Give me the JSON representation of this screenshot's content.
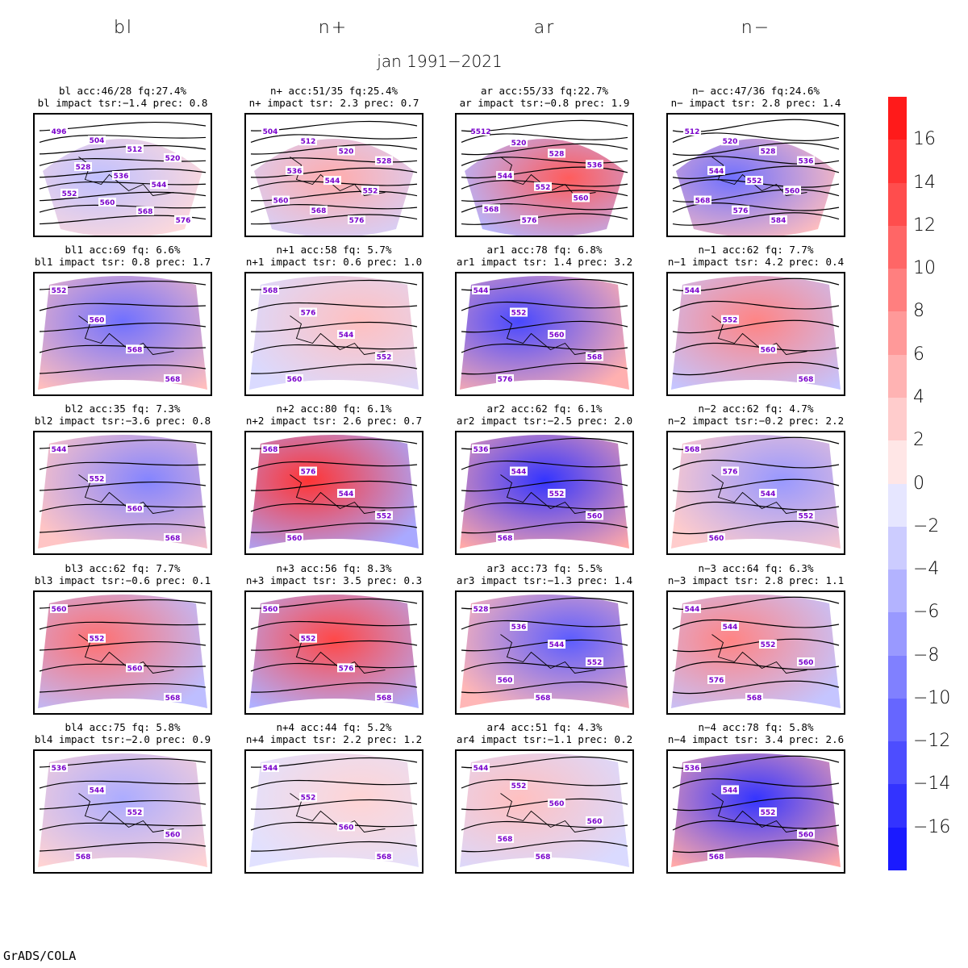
{
  "columns": [
    "bl",
    "n+",
    "ar",
    "n−"
  ],
  "title": "jan 1991−2021",
  "credit": "GrADS/COLA",
  "panels": [
    {
      "l1": "bl acc:46/28 fq:27.4%",
      "l2": "bl impact tsr:−1.4 prec: 0.8",
      "h": -0.2,
      "lbls": [
        "496",
        "504",
        "512",
        "520",
        "528",
        "536",
        "544",
        "552",
        "560",
        "568",
        "576"
      ],
      "icon": "hemispheric-map"
    },
    {
      "l1": "n+ acc:51/35 fq:25.4%",
      "l2": "n+ impact tsr: 2.3 prec: 0.7",
      "h": 0.3,
      "lbls": [
        "504",
        "512",
        "520",
        "528",
        "536",
        "544",
        "552",
        "560",
        "568",
        "576"
      ],
      "icon": "hemispheric-map"
    },
    {
      "l1": "ar acc:55/33 fq:22.7%",
      "l2": "ar impact tsr:−0.8 prec: 1.9",
      "h": 0.7,
      "lbls": [
        "5512",
        "520",
        "528",
        "536",
        "544",
        "552",
        "560",
        "568",
        "576"
      ],
      "icon": "hemispheric-map"
    },
    {
      "l1": "n− acc:47/36 fq:24.6%",
      "l2": "n− impact tsr: 2.8 prec: 1.4",
      "h": -0.6,
      "lbls": [
        "512",
        "520",
        "528",
        "536",
        "544",
        "552",
        "560",
        "568",
        "576",
        "584"
      ],
      "icon": "hemispheric-map"
    },
    {
      "l1": "bl1 acc:69 fq: 6.6%",
      "l2": "bl1 impact tsr: 0.8 prec: 1.7",
      "h": -0.6,
      "lbls": [
        "552",
        "560",
        "568",
        "568"
      ],
      "icon": "europe-map"
    },
    {
      "l1": "n+1 acc:58 fq: 5.7%",
      "l2": "n+1 impact tsr: 0.6 prec: 1.0",
      "h": 0.2,
      "lbls": [
        "568",
        "576",
        "544",
        "552",
        "560"
      ],
      "icon": "europe-map"
    },
    {
      "l1": "ar1 acc:78 fq: 6.8%",
      "l2": "ar1 impact tsr: 1.4 prec: 3.2",
      "h": -0.8,
      "lbls": [
        "544",
        "552",
        "560",
        "568",
        "576"
      ],
      "icon": "europe-map"
    },
    {
      "l1": "n−1 acc:62 fq: 7.7%",
      "l2": "n−1 impact tsr: 4.2 prec: 0.4",
      "h": 0.5,
      "lbls": [
        "544",
        "552",
        "560",
        "568"
      ],
      "icon": "europe-map"
    },
    {
      "l1": "bl2 acc:35 fq: 7.3%",
      "l2": "bl2 impact tsr:−3.6 prec: 0.8",
      "h": -0.5,
      "lbls": [
        "544",
        "552",
        "560",
        "568"
      ],
      "icon": "europe-map"
    },
    {
      "l1": "n+2 acc:80 fq: 6.1%",
      "l2": "n+2 impact tsr: 2.6 prec: 0.7",
      "h": 0.9,
      "lbls": [
        "568",
        "576",
        "544",
        "552",
        "560"
      ],
      "icon": "europe-map"
    },
    {
      "l1": "ar2 acc:62 fq: 6.1%",
      "l2": "ar2 impact tsr:−2.5 prec: 2.0",
      "h": -0.9,
      "lbls": [
        "536",
        "544",
        "552",
        "560",
        "568"
      ],
      "icon": "europe-map"
    },
    {
      "l1": "n−2 acc:62 fq: 4.7%",
      "l2": "n−2 impact tsr:−0.2 prec: 2.2",
      "h": -0.4,
      "lbls": [
        "568",
        "576",
        "544",
        "552",
        "560"
      ],
      "icon": "europe-map"
    },
    {
      "l1": "bl3 acc:62 fq: 7.7%",
      "l2": "bl3 impact tsr:−0.6 prec: 0.1",
      "h": 0.6,
      "lbls": [
        "560",
        "552",
        "560",
        "568"
      ],
      "icon": "europe-map"
    },
    {
      "l1": "n+3 acc:56 fq: 8.3%",
      "l2": "n+3 impact tsr: 3.5 prec: 0.3",
      "h": 0.8,
      "lbls": [
        "560",
        "552",
        "576",
        "568"
      ],
      "icon": "europe-map"
    },
    {
      "l1": "ar3 acc:73 fq: 5.5%",
      "l2": "ar3 impact tsr:−1.3 prec: 1.4",
      "h": -0.7,
      "lbls": [
        "528",
        "536",
        "544",
        "552",
        "560",
        "568"
      ],
      "icon": "europe-map"
    },
    {
      "l1": "n−3 acc:64 fq: 6.3%",
      "l2": "n−3 impact tsr: 2.8 prec: 1.1",
      "h": 0.5,
      "lbls": [
        "544",
        "544",
        "552",
        "560",
        "576",
        "568"
      ],
      "icon": "europe-map"
    },
    {
      "l1": "bl4 acc:75 fq: 5.8%",
      "l2": "bl4 impact tsr:−2.0 prec: 0.9",
      "h": -0.3,
      "lbls": [
        "536",
        "544",
        "552",
        "560",
        "568"
      ],
      "icon": "europe-map"
    },
    {
      "l1": "n+4 acc:44 fq: 5.2%",
      "l2": "n+4 impact tsr: 2.2 prec: 1.2",
      "h": 0.1,
      "lbls": [
        "544",
        "552",
        "560",
        "568"
      ],
      "icon": "europe-map"
    },
    {
      "l1": "ar4 acc:51 fq: 4.3%",
      "l2": "ar4 impact tsr:−1.1 prec: 0.2",
      "h": 0.2,
      "lbls": [
        "544",
        "552",
        "560",
        "560",
        "568",
        "568"
      ],
      "icon": "europe-map"
    },
    {
      "l1": "n−4 acc:78 fq: 5.8%",
      "l2": "n−4 impact tsr: 3.4 prec: 2.6",
      "h": -0.9,
      "lbls": [
        "536",
        "544",
        "552",
        "560",
        "568"
      ],
      "icon": "europe-map"
    }
  ],
  "colorbar": {
    "labels": [
      "16",
      "14",
      "12",
      "10",
      "8",
      "6",
      "4",
      "2",
      "0",
      "−2",
      "−4",
      "−6",
      "−8",
      "−10",
      "−12",
      "−14",
      "−16"
    ],
    "colors": [
      "#ff1a1a",
      "#ff3333",
      "#ff4d4d",
      "#ff6666",
      "#ff7f7f",
      "#ff9999",
      "#ffb3b3",
      "#ffcccc",
      "#ffe6e6",
      "#e6e6ff",
      "#ccccff",
      "#b3b3ff",
      "#9999ff",
      "#8080ff",
      "#6666ff",
      "#4d4dff",
      "#3333ff",
      "#1a1aff"
    ]
  }
}
